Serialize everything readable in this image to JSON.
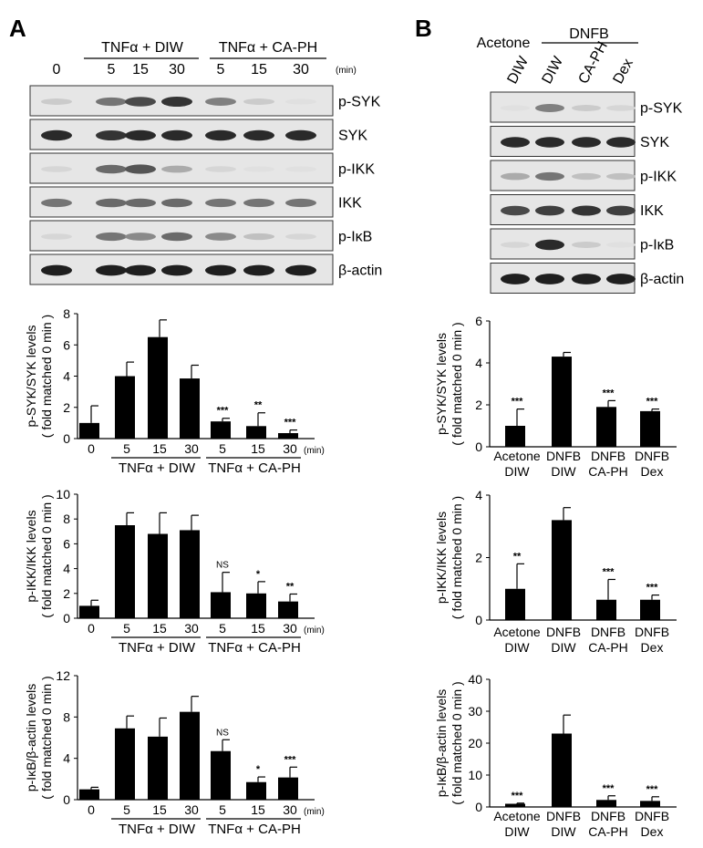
{
  "panels": {
    "A": {
      "letter": "A",
      "group_labels": [
        "TNFα + DIW",
        "TNFα + CA-PH"
      ],
      "lanes": [
        "0",
        "5",
        "15",
        "30",
        "5",
        "15",
        "30"
      ],
      "unit": "(min)",
      "blots": [
        {
          "label": "p-SYK",
          "intensity": [
            0.15,
            0.55,
            0.75,
            0.85,
            0.5,
            0.15,
            0.05
          ]
        },
        {
          "label": "SYK",
          "intensity": [
            0.9,
            0.85,
            0.9,
            0.9,
            0.9,
            0.9,
            0.9
          ]
        },
        {
          "label": "p-IKK",
          "intensity": [
            0.1,
            0.6,
            0.7,
            0.3,
            0.1,
            0.05,
            0.05
          ]
        },
        {
          "label": "IKK",
          "intensity": [
            0.55,
            0.6,
            0.6,
            0.6,
            0.55,
            0.55,
            0.55
          ]
        },
        {
          "label": "p-IκB",
          "intensity": [
            0.1,
            0.55,
            0.45,
            0.6,
            0.45,
            0.2,
            0.1
          ]
        },
        {
          "label": "β-actin",
          "intensity": [
            0.95,
            0.95,
            0.95,
            0.95,
            0.95,
            0.95,
            0.95
          ]
        }
      ]
    },
    "B": {
      "letter": "B",
      "group_labels": [
        "Acetone",
        "DNFB"
      ],
      "lanes": [
        "DIW",
        "DIW",
        "CA-PH",
        "Dex"
      ],
      "blots": [
        {
          "label": "p-SYK",
          "intensity": [
            0.05,
            0.5,
            0.15,
            0.1
          ]
        },
        {
          "label": "SYK",
          "intensity": [
            0.9,
            0.9,
            0.9,
            0.9
          ]
        },
        {
          "label": "p-IKK",
          "intensity": [
            0.3,
            0.55,
            0.2,
            0.2
          ]
        },
        {
          "label": "IKK",
          "intensity": [
            0.75,
            0.8,
            0.85,
            0.8
          ]
        },
        {
          "label": "p-IκB",
          "intensity": [
            0.1,
            0.9,
            0.15,
            0.05
          ]
        },
        {
          "label": "β-actin",
          "intensity": [
            0.95,
            0.95,
            0.95,
            0.95
          ]
        }
      ]
    }
  },
  "chart_data": [
    {
      "type": "bar",
      "ylabel": [
        "p-SYK/SYK levels",
        "( fold matched 0 min )"
      ],
      "ylim": [
        0,
        8
      ],
      "yticks": [
        "0",
        "2",
        "4",
        "6",
        "8"
      ],
      "categories": [
        "0",
        "5",
        "15",
        "30",
        "5",
        "15",
        "30"
      ],
      "group_labels": [
        "TNFα + DIW",
        "TNFα + CA-PH"
      ],
      "unit": "(min)",
      "values": [
        1.0,
        4.0,
        6.5,
        3.85,
        1.1,
        0.8,
        0.35
      ],
      "errors": [
        1.1,
        0.9,
        1.1,
        0.85,
        0.2,
        0.85,
        0.2
      ],
      "annotations": [
        "",
        "",
        "",
        "",
        "***",
        "**",
        "***"
      ]
    },
    {
      "type": "bar",
      "ylabel": [
        "p-IKK/IKK levels",
        "( fold matched 0 min )"
      ],
      "ylim": [
        0,
        10
      ],
      "yticks": [
        "0",
        "2",
        "4",
        "6",
        "8",
        "10"
      ],
      "categories": [
        "0",
        "5",
        "15",
        "30",
        "5",
        "15",
        "30"
      ],
      "group_labels": [
        "TNFα + DIW",
        "TNFα + CA-PH"
      ],
      "unit": "(min)",
      "values": [
        1.0,
        7.5,
        6.8,
        7.1,
        2.1,
        2.0,
        1.35
      ],
      "errors": [
        0.45,
        1.0,
        1.7,
        1.2,
        1.6,
        0.95,
        0.6
      ],
      "annotations": [
        "",
        "",
        "",
        "",
        "NS",
        "*",
        "**"
      ]
    },
    {
      "type": "bar",
      "ylabel": [
        "p-IκB/β-actin levels",
        "( fold matched 0 min )"
      ],
      "ylim": [
        0,
        12
      ],
      "yticks": [
        "0",
        "4",
        "8",
        "12"
      ],
      "categories": [
        "0",
        "5",
        "15",
        "30",
        "5",
        "15",
        "30"
      ],
      "group_labels": [
        "TNFα + DIW",
        "TNFα + CA-PH"
      ],
      "unit": "(min)",
      "values": [
        1.0,
        6.9,
        6.1,
        8.5,
        4.7,
        1.7,
        2.15
      ],
      "errors": [
        0.2,
        1.2,
        1.8,
        1.5,
        1.1,
        0.5,
        1.0
      ],
      "annotations": [
        "",
        "",
        "",
        "",
        "NS",
        "*",
        "***"
      ]
    },
    {
      "type": "bar",
      "ylabel": [
        "p-SYK/SYK levels",
        "( fold matched 0 min )"
      ],
      "ylim": [
        0,
        6
      ],
      "yticks": [
        "0",
        "2",
        "4",
        "6"
      ],
      "categories": [
        [
          "Acetone",
          "DIW"
        ],
        [
          "DNFB",
          "DIW"
        ],
        [
          "DNFB",
          "CA-PH"
        ],
        [
          "DNFB",
          "Dex"
        ]
      ],
      "values": [
        1.0,
        4.3,
        1.9,
        1.7
      ],
      "errors": [
        0.8,
        0.2,
        0.3,
        0.1
      ],
      "annotations": [
        "***",
        "",
        "***",
        "***"
      ]
    },
    {
      "type": "bar",
      "ylabel": [
        "p-IKK/IKK levels",
        "( fold matched 0 min )"
      ],
      "ylim": [
        0,
        4
      ],
      "yticks": [
        "0",
        "2",
        "4"
      ],
      "categories": [
        [
          "Acetone",
          "DIW"
        ],
        [
          "DNFB",
          "DIW"
        ],
        [
          "DNFB",
          "CA-PH"
        ],
        [
          "DNFB",
          "Dex"
        ]
      ],
      "values": [
        1.0,
        3.2,
        0.65,
        0.65
      ],
      "errors": [
        0.8,
        0.4,
        0.65,
        0.15
      ],
      "annotations": [
        "**",
        "",
        "***",
        "***"
      ]
    },
    {
      "type": "bar",
      "ylabel": [
        "p-IκB/β-actin levels",
        "( fold matched 0 min )"
      ],
      "ylim": [
        0,
        40
      ],
      "yticks": [
        "0",
        "10",
        "20",
        "30",
        "40"
      ],
      "categories": [
        [
          "Acetone",
          "DIW"
        ],
        [
          "DNFB",
          "DIW"
        ],
        [
          "DNFB",
          "CA-PH"
        ],
        [
          "DNFB",
          "Dex"
        ]
      ],
      "values": [
        1.0,
        23.0,
        2.2,
        1.9
      ],
      "errors": [
        0.2,
        5.8,
        1.3,
        1.3
      ],
      "annotations": [
        "***",
        "",
        "***",
        "***"
      ]
    }
  ]
}
